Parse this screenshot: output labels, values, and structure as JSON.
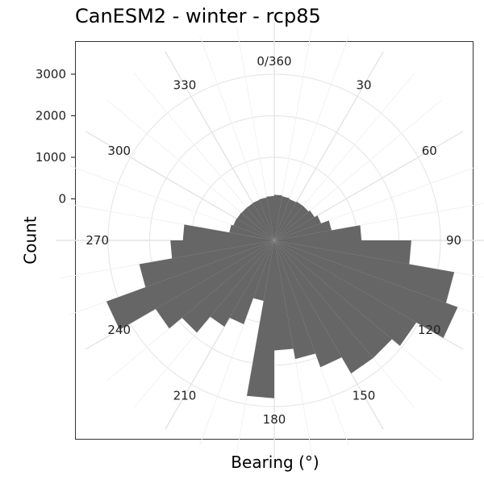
{
  "chart_data": {
    "type": "bar",
    "subtype": "polar-histogram",
    "title": "CanESM2 - winter - rcp85",
    "xlabel": "Bearing (°)",
    "ylabel": "Count",
    "angle_ticks": [
      "0/360",
      "30",
      "60",
      "90",
      "120",
      "150",
      "180",
      "210",
      "240",
      "270",
      "300",
      "330"
    ],
    "angle_tick_values": [
      0,
      30,
      60,
      90,
      120,
      150,
      180,
      210,
      240,
      270,
      300,
      330
    ],
    "radial_ticks": [
      0,
      1000,
      2000,
      3000
    ],
    "radial_range": [
      -1000,
      4250
    ],
    "bin_width_deg": 10,
    "bins": [
      {
        "bearing": 5,
        "count": 100
      },
      {
        "bearing": 15,
        "count": 80
      },
      {
        "bearing": 25,
        "count": 60
      },
      {
        "bearing": 35,
        "count": 80
      },
      {
        "bearing": 45,
        "count": 80
      },
      {
        "bearing": 55,
        "count": 120
      },
      {
        "bearing": 65,
        "count": 200
      },
      {
        "bearing": 75,
        "count": 400
      },
      {
        "bearing": 85,
        "count": 1100
      },
      {
        "bearing": 95,
        "count": 2300
      },
      {
        "bearing": 105,
        "count": 3400
      },
      {
        "bearing": 115,
        "count": 3700
      },
      {
        "bearing": 125,
        "count": 2950
      },
      {
        "bearing": 135,
        "count": 2700
      },
      {
        "bearing": 145,
        "count": 2700
      },
      {
        "bearing": 155,
        "count": 2250
      },
      {
        "bearing": 165,
        "count": 1900
      },
      {
        "bearing": 175,
        "count": 1650
      },
      {
        "bearing": 185,
        "count": 2800
      },
      {
        "bearing": 195,
        "count": 480
      },
      {
        "bearing": 205,
        "count": 1150
      },
      {
        "bearing": 215,
        "count": 1400
      },
      {
        "bearing": 225,
        "count": 1900
      },
      {
        "bearing": 235,
        "count": 2300
      },
      {
        "bearing": 245,
        "count": 3300
      },
      {
        "bearing": 255,
        "count": 2300
      },
      {
        "bearing": 265,
        "count": 1500
      },
      {
        "bearing": 275,
        "count": 1200
      },
      {
        "bearing": 285,
        "count": 100
      },
      {
        "bearing": 295,
        "count": 50
      },
      {
        "bearing": 305,
        "count": 40
      },
      {
        "bearing": 315,
        "count": 30
      },
      {
        "bearing": 325,
        "count": 30
      },
      {
        "bearing": 335,
        "count": 40
      },
      {
        "bearing": 345,
        "count": 50
      },
      {
        "bearing": 355,
        "count": 70
      }
    ],
    "bar_color": "#666666",
    "grid_color": "#e8e8e8",
    "grid": true
  }
}
